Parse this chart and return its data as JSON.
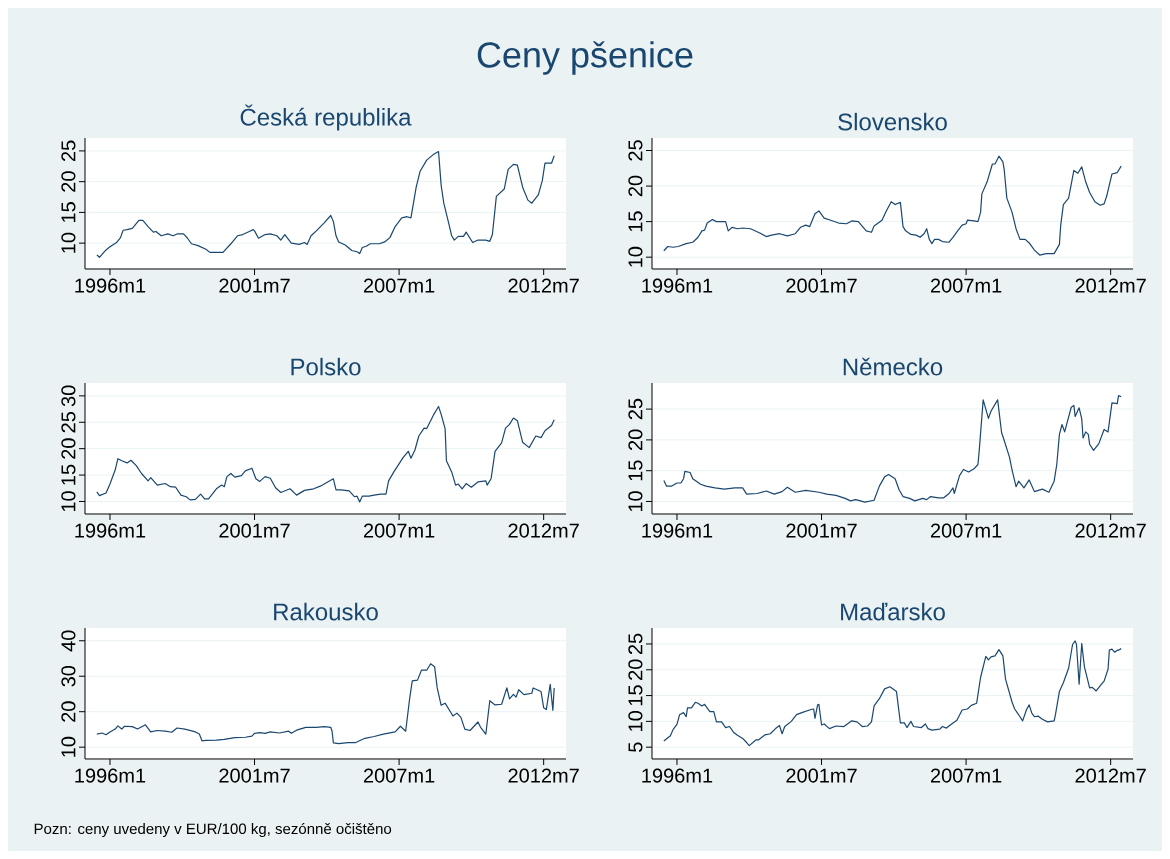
{
  "chart_data": [
    {
      "type": "other",
      "title": "Ceny pšenice",
      "annotations": [
        "Pozn: ceny uvedeny v EUR/100 kg, sezónně očištěno"
      ]
    },
    {
      "type": "line",
      "title": "Česká republika",
      "grid": "y",
      "xlim": [
        "1995-01-19",
        "2013-05-07"
      ],
      "ylim": [
        5.8,
        27.1
      ],
      "yticks": [
        10,
        15,
        20,
        25
      ],
      "xticks": [
        {
          "value": "1996-01-01",
          "label": "1996m1"
        },
        {
          "value": "2001-07-01",
          "label": "2001m7"
        },
        {
          "value": "2007-01-01",
          "label": "2007m1"
        },
        {
          "value": "2012-07-01",
          "label": "2012m7"
        }
      ],
      "x": [
        "1995-07-01",
        "1995-08-07",
        "1995-11-07",
        "1996-01-01",
        "1996-04-01",
        "1996-05-25",
        "1996-07-01",
        "1996-08-25",
        "1996-11-07",
        "1997-02-07",
        "1997-04-01",
        "1997-06-13",
        "1997-08-25",
        "1997-10-01",
        "1997-12-13",
        "1998-03-13",
        "1998-05-25",
        "1998-07-19",
        "1998-10-19",
        "1998-12-13",
        "1999-02-07",
        "1999-05-07",
        "1999-08-25",
        "1999-10-19",
        "2000-04-19",
        "2000-08-07",
        "2000-11-07",
        "2001-01-19",
        "2001-04-19",
        "2001-06-13",
        "2001-07-01",
        "2001-08-25",
        "2001-11-25",
        "2002-02-07",
        "2002-05-07",
        "2002-07-01",
        "2002-08-25",
        "2002-11-25",
        "2003-03-13",
        "2003-05-25",
        "2003-07-01",
        "2003-08-25",
        "2003-11-07",
        "2004-02-25",
        "2004-05-25",
        "2004-07-01",
        "2004-08-07",
        "2004-09-13",
        "2004-12-13",
        "2005-03-13",
        "2005-05-25",
        "2005-07-01",
        "2005-08-07",
        "2005-10-01",
        "2005-11-25",
        "2006-04-01",
        "2006-06-13",
        "2006-08-25",
        "2006-11-07",
        "2007-02-07",
        "2007-04-19",
        "2007-06-13",
        "2007-08-25",
        "2007-10-19",
        "2008-01-19",
        "2008-04-19",
        "2008-07-01",
        "2008-08-07",
        "2008-09-13",
        "2008-11-25",
        "2009-01-01",
        "2009-02-07",
        "2009-04-01",
        "2009-06-13",
        "2009-07-19",
        "2009-10-19",
        "2010-01-01",
        "2010-04-19",
        "2010-06-13",
        "2010-07-19",
        "2010-09-13",
        "2011-01-01",
        "2011-02-25",
        "2011-05-07",
        "2011-07-01",
        "2011-09-13",
        "2011-11-25",
        "2012-01-19",
        "2012-04-19",
        "2012-06-13",
        "2012-07-19",
        "2012-08-25",
        "2012-10-19",
        "2012-11-25"
      ],
      "series": [
        {
          "color": "#1a476f",
          "values": [
            8.1,
            7.7,
            8.9,
            9.4,
            10.1,
            10.9,
            12.1,
            12.2,
            12.4,
            13.7,
            13.7,
            12.7,
            11.8,
            11.9,
            11.2,
            11.5,
            11.2,
            11.5,
            11.5,
            10.8,
            9.9,
            9.6,
            9.0,
            8.5,
            8.5,
            9.9,
            11.2,
            11.4,
            11.9,
            12.2,
            12.0,
            10.8,
            11.4,
            11.5,
            11.2,
            10.5,
            11.4,
            10.0,
            9.8,
            10.1,
            9.8,
            11.2,
            12.0,
            13.3,
            14.5,
            13.5,
            11.2,
            10.2,
            9.7,
            8.8,
            8.6,
            8.3,
            9.3,
            9.5,
            9.9,
            9.9,
            10.2,
            10.9,
            12.7,
            14.1,
            14.3,
            14.1,
            19.1,
            21.7,
            23.5,
            24.4,
            24.9,
            19.4,
            16.5,
            13.0,
            11.2,
            10.5,
            11.1,
            11.1,
            11.8,
            10.1,
            10.5,
            10.5,
            10.3,
            11.4,
            17.6,
            18.8,
            22.0,
            22.8,
            22.7,
            19.1,
            17.0,
            16.5,
            17.9,
            20.2,
            23.0,
            23.0,
            23.0,
            24.2
          ]
        }
      ]
    },
    {
      "type": "line",
      "title": "Slovensko",
      "grid": "y",
      "xlim": [
        "1995-01-19",
        "2013-05-07"
      ],
      "ylim": [
        8.34,
        26.76
      ],
      "yticks": [
        10,
        15,
        20,
        25
      ],
      "xticks": [
        {
          "value": "1996-01-01",
          "label": "1996m1"
        },
        {
          "value": "2001-07-01",
          "label": "2001m7"
        },
        {
          "value": "2007-01-01",
          "label": "2007m1"
        },
        {
          "value": "2012-07-01",
          "label": "2012m7"
        }
      ],
      "x": [
        "1995-07-01",
        "1995-08-25",
        "1995-11-07",
        "1996-01-19",
        "1996-05-07",
        "1996-08-07",
        "1996-10-19",
        "1996-12-13",
        "1997-01-19",
        "1997-02-25",
        "1997-05-07",
        "1997-07-01",
        "1997-10-01",
        "1997-11-07",
        "1997-12-13",
        "1998-02-07",
        "1998-04-19",
        "1998-07-01",
        "1998-10-19",
        "1999-02-25",
        "1999-05-25",
        "1999-08-07",
        "1999-11-25",
        "2000-03-13",
        "2000-07-01",
        "2000-09-13",
        "2000-11-25",
        "2001-01-19",
        "2001-04-01",
        "2001-05-25",
        "2001-08-07",
        "2001-11-07",
        "2002-02-25",
        "2002-06-13",
        "2002-08-25",
        "2002-11-25",
        "2003-03-13",
        "2003-05-25",
        "2003-07-01",
        "2003-10-19",
        "2003-12-13",
        "2004-02-25",
        "2004-04-19",
        "2004-07-01",
        "2004-08-07",
        "2004-09-13",
        "2004-11-25",
        "2005-02-07",
        "2005-04-01",
        "2005-05-25",
        "2005-07-01",
        "2005-08-07",
        "2005-09-13",
        "2005-10-19",
        "2005-12-13",
        "2006-02-07",
        "2006-05-07",
        "2006-07-01",
        "2006-09-13",
        "2006-11-07",
        "2007-01-01",
        "2007-01-19",
        "2007-04-19",
        "2007-06-13",
        "2007-07-19",
        "2007-08-07",
        "2007-10-19",
        "2008-01-01",
        "2008-02-07",
        "2008-04-01",
        "2008-05-25",
        "2008-06-13",
        "2008-07-19",
        "2008-10-01",
        "2008-11-25",
        "2009-01-19",
        "2009-04-01",
        "2009-05-25",
        "2009-08-07",
        "2009-10-19",
        "2010-01-19",
        "2010-05-07",
        "2010-07-19",
        "2010-08-07",
        "2010-09-13",
        "2010-11-25",
        "2011-02-07",
        "2011-04-01",
        "2011-05-25",
        "2011-07-19",
        "2011-09-13",
        "2011-11-25",
        "2012-02-07",
        "2012-04-01",
        "2012-05-07",
        "2012-07-19",
        "2012-10-01",
        "2012-11-25"
      ],
      "series": [
        {
          "color": "#1a476f",
          "values": [
            10.9,
            11.5,
            11.4,
            11.5,
            11.9,
            12.1,
            12.8,
            13.7,
            13.8,
            14.8,
            15.3,
            15.0,
            15.0,
            15.0,
            13.7,
            14.2,
            14.0,
            14.1,
            14.0,
            13.4,
            12.9,
            13.1,
            13.3,
            13.0,
            13.3,
            14.2,
            14.5,
            14.3,
            16.1,
            16.5,
            15.5,
            15.2,
            14.8,
            14.7,
            15.1,
            15.0,
            13.7,
            13.5,
            14.4,
            15.2,
            16.4,
            17.8,
            17.4,
            17.7,
            14.3,
            13.7,
            13.2,
            13.1,
            12.8,
            13.3,
            14.0,
            12.5,
            11.9,
            12.5,
            12.5,
            12.2,
            12.1,
            12.8,
            13.8,
            14.5,
            14.7,
            15.2,
            15.1,
            15.0,
            16.3,
            18.9,
            20.6,
            23.1,
            23.1,
            24.2,
            23.4,
            22.3,
            18.3,
            16.3,
            14.0,
            12.5,
            12.5,
            12.0,
            11.0,
            10.3,
            10.5,
            10.5,
            11.8,
            14.5,
            17.4,
            18.3,
            22.2,
            21.8,
            22.7,
            20.6,
            19.1,
            17.8,
            17.3,
            17.5,
            18.6,
            21.7,
            21.9,
            22.8
          ]
        }
      ]
    },
    {
      "type": "line",
      "title": "Polsko",
      "grid": "y",
      "xlim": [
        "1995-01-19",
        "2013-05-07"
      ],
      "ylim": [
        7.63,
        32.44
      ],
      "yticks": [
        10,
        15,
        20,
        25,
        30
      ],
      "xticks": [
        {
          "value": "1996-01-01",
          "label": "1996m1"
        },
        {
          "value": "2001-07-01",
          "label": "2001m7"
        },
        {
          "value": "2007-01-01",
          "label": "2007m1"
        },
        {
          "value": "2012-07-01",
          "label": "2012m7"
        }
      ],
      "x": [
        "1995-07-01",
        "1995-08-07",
        "1995-11-07",
        "1996-01-01",
        "1996-03-13",
        "1996-04-19",
        "1996-06-13",
        "1996-08-25",
        "1996-10-19",
        "1997-01-01",
        "1997-03-13",
        "1997-06-13",
        "1997-07-19",
        "1997-10-19",
        "1998-02-07",
        "1998-04-19",
        "1998-07-01",
        "1998-09-13",
        "1998-11-25",
        "1999-01-19",
        "1999-04-01",
        "1999-06-13",
        "1999-08-07",
        "1999-10-01",
        "2000-01-19",
        "2000-04-01",
        "2000-05-07",
        "2000-06-13",
        "2000-08-07",
        "2000-10-01",
        "2001-01-01",
        "2001-02-25",
        "2001-05-25",
        "2001-07-19",
        "2001-09-13",
        "2001-11-25",
        "2002-02-07",
        "2002-04-19",
        "2002-07-01",
        "2002-11-07",
        "2003-02-07",
        "2003-05-25",
        "2003-10-01",
        "2004-01-01",
        "2004-02-25",
        "2004-07-01",
        "2004-08-07",
        "2004-10-19",
        "2005-02-07",
        "2005-04-19",
        "2005-05-25",
        "2005-07-01",
        "2005-08-07",
        "2005-11-07",
        "2006-01-19",
        "2006-04-19",
        "2006-07-01",
        "2006-08-07",
        "2006-10-19",
        "2007-02-25",
        "2007-05-07",
        "2007-06-13",
        "2007-08-07",
        "2007-10-01",
        "2007-12-13",
        "2008-01-19",
        "2008-04-19",
        "2008-07-01",
        "2008-08-07",
        "2008-10-01",
        "2008-10-19",
        "2009-01-01",
        "2009-02-25",
        "2009-04-01",
        "2009-05-25",
        "2009-07-19",
        "2009-10-01",
        "2010-01-01",
        "2010-04-19",
        "2010-05-07",
        "2010-07-01",
        "2010-08-25",
        "2010-11-25",
        "2011-01-19",
        "2011-03-13",
        "2011-05-07",
        "2011-07-01",
        "2011-09-13",
        "2011-12-13",
        "2012-03-13",
        "2012-05-25",
        "2012-07-19",
        "2012-10-19",
        "2012-11-25"
      ],
      "series": [
        {
          "color": "#1a476f",
          "values": [
            11.8,
            11.1,
            11.6,
            13.3,
            16.0,
            18.1,
            17.7,
            17.3,
            17.8,
            16.8,
            15.3,
            13.9,
            14.5,
            13.1,
            13.4,
            12.8,
            12.7,
            11.2,
            10.9,
            10.3,
            10.4,
            11.4,
            10.5,
            10.5,
            12.4,
            13.1,
            12.8,
            14.7,
            15.3,
            14.6,
            14.9,
            15.8,
            16.3,
            14.3,
            13.8,
            14.7,
            14.4,
            12.6,
            11.7,
            12.4,
            11.2,
            12.1,
            12.4,
            12.9,
            13.3,
            14.3,
            12.2,
            12.2,
            12.0,
            10.9,
            11.0,
            9.9,
            11.0,
            11.0,
            11.2,
            11.4,
            11.4,
            13.9,
            15.6,
            18.3,
            19.5,
            18.2,
            19.7,
            22.4,
            23.9,
            23.8,
            26.3,
            28.0,
            26.5,
            23.8,
            17.7,
            15.6,
            13.1,
            13.3,
            12.4,
            13.4,
            12.7,
            13.7,
            13.9,
            13.1,
            14.3,
            19.5,
            21.1,
            23.9,
            24.6,
            25.8,
            25.3,
            21.2,
            20.2,
            22.4,
            22.1,
            23.4,
            24.4,
            25.5
          ]
        }
      ]
    },
    {
      "type": "line",
      "title": "Německo",
      "grid": "y",
      "xlim": [
        "1995-01-19",
        "2013-05-07"
      ],
      "ylim": [
        7.97,
        29.24
      ],
      "yticks": [
        10,
        15,
        20,
        25
      ],
      "xticks": [
        {
          "value": "1996-01-01",
          "label": "1996m1"
        },
        {
          "value": "2001-07-01",
          "label": "2001m7"
        },
        {
          "value": "2007-01-01",
          "label": "2007m1"
        },
        {
          "value": "2012-07-01",
          "label": "2012m7"
        }
      ],
      "x": [
        "1995-07-01",
        "1995-08-07",
        "1995-10-19",
        "1996-01-01",
        "1996-02-25",
        "1996-04-01",
        "1996-04-19",
        "1996-07-01",
        "1996-08-07",
        "1996-11-25",
        "1997-02-07",
        "1997-06-13",
        "1997-10-19",
        "1998-03-13",
        "1998-07-01",
        "1998-08-25",
        "1999-01-19",
        "1999-05-25",
        "1999-09-13",
        "2000-01-01",
        "2000-03-13",
        "2000-07-01",
        "2000-11-25",
        "2001-05-25",
        "2001-09-13",
        "2002-01-19",
        "2002-05-25",
        "2002-08-07",
        "2002-10-19",
        "2003-02-25",
        "2003-07-01",
        "2003-09-13",
        "2003-11-25",
        "2004-01-19",
        "2004-04-19",
        "2004-06-13",
        "2004-08-07",
        "2004-11-07",
        "2005-01-19",
        "2005-05-07",
        "2005-07-01",
        "2005-08-25",
        "2005-12-13",
        "2006-02-25",
        "2006-05-07",
        "2006-07-01",
        "2006-07-19",
        "2006-10-01",
        "2006-11-25",
        "2007-02-07",
        "2007-04-19",
        "2007-06-13",
        "2007-07-01",
        "2007-08-25",
        "2007-11-07",
        "2007-12-13",
        "2008-03-13",
        "2008-05-07",
        "2008-06-13",
        "2008-08-25",
        "2008-10-01",
        "2008-11-25",
        "2009-01-01",
        "2009-03-13",
        "2009-05-25",
        "2009-08-07",
        "2009-11-25",
        "2010-02-25",
        "2010-05-07",
        "2010-06-13",
        "2010-07-19",
        "2010-08-25",
        "2010-10-01",
        "2011-01-01",
        "2011-02-07",
        "2011-02-25",
        "2011-04-19",
        "2011-05-25",
        "2011-06-13",
        "2011-07-19",
        "2011-08-25",
        "2011-09-13",
        "2011-11-07",
        "2012-01-19",
        "2012-04-01",
        "2012-05-25",
        "2012-07-19",
        "2012-10-01",
        "2012-10-19",
        "2012-11-25"
      ],
      "series": [
        {
          "color": "#1a476f",
          "values": [
            13.4,
            12.5,
            12.5,
            13.0,
            13.0,
            13.7,
            14.9,
            14.7,
            13.7,
            12.8,
            12.5,
            12.2,
            12.0,
            12.2,
            12.2,
            11.2,
            11.3,
            11.7,
            11.2,
            11.6,
            12.3,
            11.5,
            11.8,
            11.5,
            11.2,
            11.0,
            10.5,
            10.1,
            10.3,
            9.9,
            10.2,
            12.5,
            14.0,
            14.4,
            13.7,
            11.9,
            10.8,
            10.5,
            10.1,
            10.5,
            10.3,
            10.8,
            10.6,
            10.6,
            11.3,
            12.2,
            11.3,
            14.2,
            15.2,
            14.8,
            15.3,
            16.0,
            18.3,
            26.5,
            23.5,
            24.7,
            26.5,
            21.2,
            19.9,
            17.2,
            15.1,
            12.4,
            13.3,
            12.2,
            13.5,
            11.6,
            12.0,
            11.5,
            13.3,
            16.0,
            20.9,
            22.5,
            21.3,
            25.3,
            25.6,
            23.8,
            25.2,
            23.4,
            20.3,
            21.3,
            20.9,
            19.3,
            18.3,
            19.4,
            21.7,
            21.3,
            26.0,
            25.9,
            27.2,
            27.0
          ]
        }
      ]
    },
    {
      "type": "line",
      "title": "Rakousko",
      "grid": "y",
      "xlim": [
        "1995-01-19",
        "2013-05-07"
      ],
      "ylim": [
        6.67,
        43.6
      ],
      "yticks": [
        10,
        20,
        30,
        40
      ],
      "xticks": [
        {
          "value": "1996-01-01",
          "label": "1996m1"
        },
        {
          "value": "2001-07-01",
          "label": "2001m7"
        },
        {
          "value": "2007-01-01",
          "label": "2007m1"
        },
        {
          "value": "2012-07-01",
          "label": "2012m7"
        }
      ],
      "x": [
        "1995-07-01",
        "1995-09-13",
        "1995-11-07",
        "1996-01-01",
        "1996-03-13",
        "1996-04-19",
        "1996-06-13",
        "1996-07-19",
        "1996-11-07",
        "1997-01-19",
        "1997-05-07",
        "1997-07-19",
        "1997-10-19",
        "1998-02-07",
        "1998-05-07",
        "1998-07-19",
        "1998-11-07",
        "1999-04-01",
        "1999-05-25",
        "1999-07-01",
        "1999-08-25",
        "2000-01-19",
        "2000-05-07",
        "2000-10-01",
        "2001-02-25",
        "2001-05-25",
        "2001-07-01",
        "2001-09-13",
        "2001-11-25",
        "2002-02-07",
        "2002-06-13",
        "2002-10-19",
        "2002-11-25",
        "2003-02-07",
        "2003-06-13",
        "2003-11-07",
        "2004-02-25",
        "2004-05-25",
        "2004-06-13",
        "2004-07-01",
        "2004-09-13",
        "2005-01-19",
        "2005-05-07",
        "2005-09-13",
        "2006-01-19",
        "2006-05-25",
        "2006-11-07",
        "2007-01-19",
        "2007-04-01",
        "2007-05-25",
        "2007-07-01",
        "2007-09-13",
        "2007-11-07",
        "2008-01-19",
        "2008-03-13",
        "2008-05-07",
        "2008-06-13",
        "2008-08-07",
        "2008-10-01",
        "2009-01-19",
        "2009-03-13",
        "2009-05-07",
        "2009-07-01",
        "2009-09-13",
        "2010-01-01",
        "2010-02-07",
        "2010-04-19",
        "2010-06-13",
        "2010-08-25",
        "2010-11-25",
        "2011-02-07",
        "2011-03-13",
        "2011-05-07",
        "2011-06-13",
        "2011-07-19",
        "2011-10-01",
        "2012-01-19",
        "2012-02-07",
        "2012-05-25",
        "2012-07-01",
        "2012-08-07",
        "2012-10-01",
        "2012-11-07",
        "2012-11-25"
      ],
      "series": [
        {
          "color": "#1a476f",
          "values": [
            13.7,
            14.0,
            13.5,
            14.3,
            15.1,
            16.0,
            15.1,
            15.9,
            15.8,
            15.1,
            16.3,
            14.3,
            14.7,
            14.5,
            14.2,
            15.4,
            15.1,
            14.3,
            13.7,
            11.8,
            11.9,
            12.0,
            12.2,
            12.7,
            12.8,
            13.1,
            13.9,
            14.1,
            13.9,
            14.3,
            14.0,
            14.5,
            13.9,
            14.8,
            15.6,
            15.6,
            15.8,
            15.6,
            14.5,
            11.2,
            11.0,
            11.3,
            11.3,
            12.5,
            13.0,
            13.7,
            14.3,
            15.9,
            14.5,
            23.6,
            28.7,
            28.9,
            31.7,
            31.7,
            33.5,
            32.7,
            26.7,
            21.8,
            22.4,
            18.8,
            19.6,
            18.4,
            15.1,
            14.7,
            17.1,
            15.6,
            13.7,
            23.1,
            21.9,
            22.1,
            26.7,
            23.6,
            24.9,
            24.1,
            26.2,
            24.8,
            25.2,
            26.7,
            25.7,
            21.1,
            20.6,
            27.7,
            20.4,
            26.7
          ]
        }
      ]
    },
    {
      "type": "line",
      "title": "Maďarsko",
      "grid": "y",
      "xlim": [
        "1995-01-19",
        "2013-05-07"
      ],
      "ylim": [
        2.71,
        28.1
      ],
      "yticks": [
        5,
        10,
        15,
        20,
        25
      ],
      "xticks": [
        {
          "value": "1996-01-01",
          "label": "1996m1"
        },
        {
          "value": "2001-07-01",
          "label": "2001m7"
        },
        {
          "value": "2007-01-01",
          "label": "2007m1"
        },
        {
          "value": "2012-07-01",
          "label": "2012m7"
        }
      ],
      "x": [
        "1995-07-01",
        "1995-10-01",
        "1995-11-07",
        "1996-01-01",
        "1996-02-07",
        "1996-04-01",
        "1996-05-07",
        "1996-05-25",
        "1996-07-19",
        "1996-09-13",
        "1996-10-19",
        "1996-12-13",
        "1997-01-19",
        "1997-04-01",
        "1997-05-25",
        "1997-07-01",
        "1997-09-13",
        "1997-11-07",
        "1998-01-01",
        "1998-02-25",
        "1998-04-19",
        "1998-07-01",
        "1998-08-25",
        "1998-10-01",
        "1999-01-01",
        "1999-02-07",
        "1999-05-07",
        "1999-07-19",
        "1999-10-01",
        "1999-11-25",
        "2000-01-01",
        "2000-02-07",
        "2000-05-07",
        "2000-07-19",
        "2000-10-01",
        "2001-02-07",
        "2001-03-13",
        "2001-04-01",
        "2001-05-07",
        "2001-05-25",
        "2001-07-01",
        "2001-08-07",
        "2001-10-19",
        "2002-01-19",
        "2002-05-07",
        "2002-08-25",
        "2002-11-07",
        "2003-01-19",
        "2003-04-01",
        "2003-05-25",
        "2003-07-01",
        "2003-09-13",
        "2003-11-25",
        "2004-02-07",
        "2004-05-07",
        "2004-07-01",
        "2004-08-25",
        "2004-10-01",
        "2004-11-25",
        "2005-01-01",
        "2005-04-19",
        "2005-06-13",
        "2005-07-19",
        "2005-09-13",
        "2006-01-01",
        "2006-02-07",
        "2006-04-01",
        "2006-06-13",
        "2006-08-25",
        "2006-11-07",
        "2007-01-19",
        "2007-03-13",
        "2007-05-25",
        "2007-07-19",
        "2007-10-01",
        "2007-11-07",
        "2007-12-13",
        "2008-02-07",
        "2008-04-01",
        "2008-05-25",
        "2008-07-01",
        "2008-10-01",
        "2008-11-07",
        "2009-01-19",
        "2009-02-25",
        "2009-04-19",
        "2009-05-25",
        "2009-07-01",
        "2009-08-07",
        "2009-10-01",
        "2009-11-25",
        "2010-02-07",
        "2010-05-07",
        "2010-05-25",
        "2010-07-19",
        "2010-09-13",
        "2010-11-25",
        "2011-01-19",
        "2011-02-25",
        "2011-03-13",
        "2011-04-19",
        "2011-05-25",
        "2011-07-01",
        "2011-09-13",
        "2011-10-19",
        "2011-12-13",
        "2012-02-25",
        "2012-04-01",
        "2012-05-25",
        "2012-06-13",
        "2012-07-19",
        "2012-08-25",
        "2012-10-01",
        "2012-10-19",
        "2012-11-25"
      ],
      "series": [
        {
          "color": "#1a476f",
          "values": [
            6.2,
            7.2,
            8.4,
            9.4,
            11.3,
            11.7,
            10.9,
            12.6,
            12.6,
            13.7,
            13.5,
            13.0,
            13.3,
            11.9,
            11.9,
            9.9,
            9.9,
            8.8,
            9.0,
            7.9,
            7.3,
            6.7,
            5.9,
            5.3,
            6.4,
            6.4,
            7.4,
            7.6,
            8.6,
            9.2,
            7.6,
            9.0,
            10.0,
            11.3,
            11.7,
            12.3,
            12.4,
            10.6,
            13.2,
            13.3,
            9.3,
            9.5,
            8.6,
            9.1,
            9.0,
            10.1,
            9.9,
            9.0,
            9.1,
            9.9,
            13.0,
            14.4,
            16.3,
            16.7,
            15.8,
            9.7,
            9.7,
            8.8,
            10.0,
            9.0,
            8.8,
            9.5,
            8.6,
            8.3,
            8.5,
            9.0,
            8.7,
            9.5,
            10.2,
            12.2,
            12.4,
            13.1,
            13.5,
            18.5,
            22.6,
            21.9,
            22.5,
            22.7,
            23.9,
            22.7,
            18.2,
            13.7,
            12.4,
            10.9,
            10.1,
            12.3,
            13.2,
            11.6,
            10.9,
            11.0,
            10.4,
            9.9,
            10.1,
            11.3,
            15.8,
            17.5,
            20.3,
            24.9,
            25.6,
            24.9,
            17.2,
            25.1,
            20.6,
            16.5,
            16.6,
            15.9,
            17.2,
            17.8,
            20.1,
            23.8,
            24.0,
            23.4,
            23.8,
            23.8,
            24.1
          ]
        }
      ]
    }
  ]
}
